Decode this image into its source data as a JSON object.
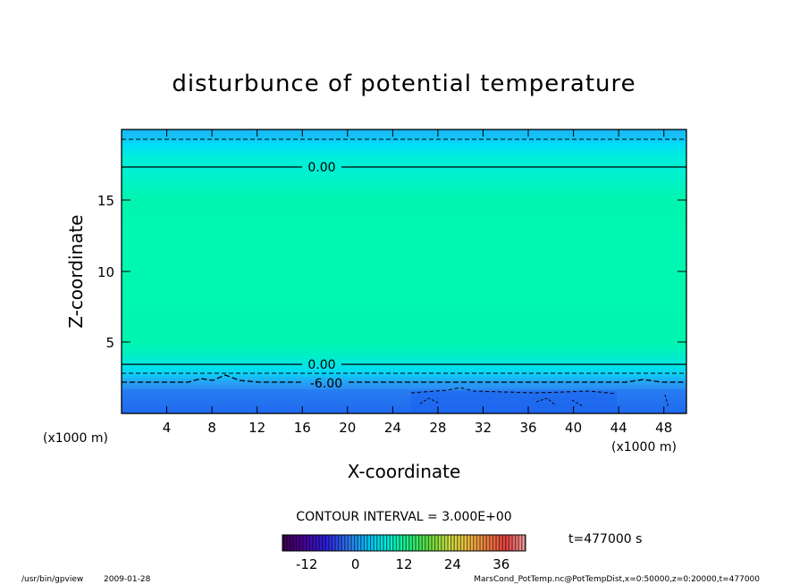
{
  "chart_data": {
    "type": "heatmap",
    "title": "disturbunce of potential temperature",
    "xlabel": "X-coordinate",
    "ylabel": "Z-coordinate",
    "x_unit": "(x1000 m)",
    "x_unit_right": "(x1000 m)",
    "xlim": [
      0,
      50
    ],
    "ylim": [
      0,
      20
    ],
    "xticks": [
      "4",
      "8",
      "12",
      "16",
      "20",
      "24",
      "28",
      "32",
      "36",
      "40",
      "44",
      "48"
    ],
    "yticks": [
      "5",
      "10",
      "15"
    ],
    "contour_interval_text": "CONTOUR INTERVAL = 3.000E+00",
    "contour_labels": [
      {
        "text": "0.00",
        "x": 17,
        "z": 17.4
      },
      {
        "text": "0.00",
        "x": 17,
        "z": 3.45
      },
      {
        "text": "-6.00",
        "x": 17,
        "z": 2.1
      }
    ],
    "colorbar": {
      "ticks": [
        "-12",
        "0",
        "12",
        "24",
        "36"
      ],
      "range": [
        -18,
        42
      ]
    },
    "time_text": "t=477000 s",
    "footer_left": "/usr/bin/gpview",
    "footer_date": "2009-01-28",
    "footer_right": "MarsCond_PotTemp.nc@PotTempDist,x=0:50000,z=0:20000,t=477000",
    "colors": {
      "deep_blue": "#1e64f0",
      "mid_blue": "#3c8cf5",
      "cyan": "#00e6f8",
      "teal_green": "#00f5b4",
      "sky": "#14bef5"
    }
  }
}
